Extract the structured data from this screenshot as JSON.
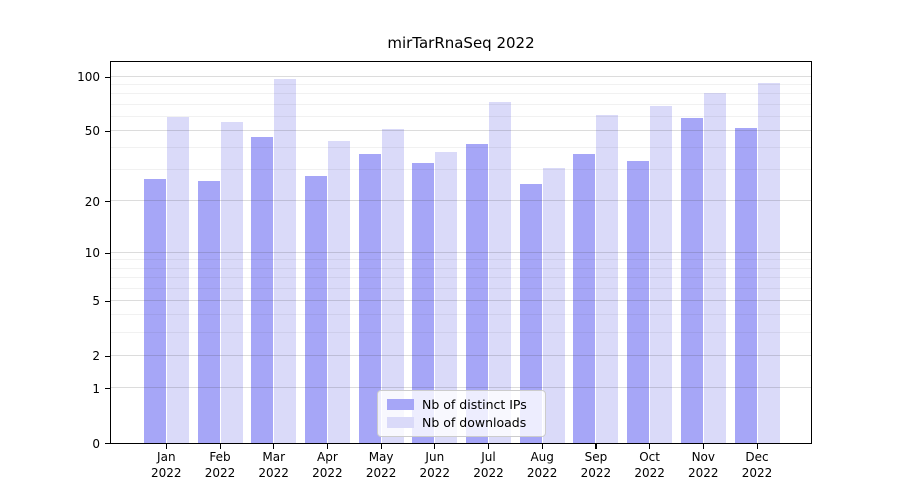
{
  "title": "mirTarRnaSeq 2022",
  "colors": {
    "distinct_ips_bar": "#a6a6f7",
    "downloads_bar": "#dadaf9",
    "grid_major": "#d6d6d6",
    "grid_minor": "#efefef",
    "axis_line": "#000000",
    "legend_border": "#cccccc",
    "background": "#ffffff"
  },
  "chart_data": {
    "type": "bar",
    "title": "mirTarRnaSeq 2022",
    "categories": [
      "Jan",
      "Feb",
      "Mar",
      "Apr",
      "May",
      "Jun",
      "Jul",
      "Aug",
      "Sep",
      "Oct",
      "Nov",
      "Dec"
    ],
    "category_year": "2022",
    "series": [
      {
        "name": "Nb of distinct IPs",
        "color": "#a6a6f7",
        "values": [
          27,
          26,
          46,
          28,
          37,
          33,
          42,
          25,
          37,
          34,
          59,
          52
        ]
      },
      {
        "name": "Nb of downloads",
        "color": "#dadaf9",
        "values": [
          60,
          56,
          97,
          44,
          51,
          38,
          72,
          31,
          61,
          69,
          81,
          92
        ]
      }
    ],
    "xlabel": "",
    "ylabel": "",
    "y_scale": "log1p",
    "y_ticks": [
      0,
      1,
      2,
      5,
      10,
      20,
      50,
      100
    ],
    "y_tick_labels": [
      "0",
      "1",
      "2",
      "5",
      "10",
      "20",
      "50",
      "100"
    ],
    "y_minor_gridlines": [
      3,
      4,
      6,
      7,
      8,
      9,
      30,
      40,
      60,
      70,
      80,
      90
    ],
    "ylim": [
      0,
      122
    ],
    "grid": true,
    "legend_position": "lower center"
  }
}
